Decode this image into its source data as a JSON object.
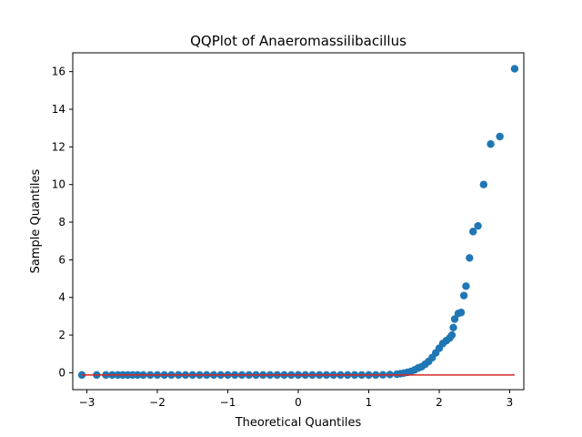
{
  "chart_data": {
    "type": "scatter",
    "title": "QQPlot of Anaeromassilibacillus",
    "xlabel": "Theoretical Quantiles",
    "ylabel": "Sample Quantiles",
    "xlim": [
      -3.2,
      3.2
    ],
    "ylim": [
      -0.9,
      17.0
    ],
    "xticks": [
      -3,
      -2,
      -1,
      0,
      1,
      2,
      3
    ],
    "xtick_labels": [
      "−3",
      "−2",
      "−1",
      "0",
      "1",
      "2",
      "3"
    ],
    "yticks": [
      0,
      2,
      4,
      6,
      8,
      10,
      12,
      14,
      16
    ],
    "ytick_labels": [
      "0",
      "2",
      "4",
      "6",
      "8",
      "10",
      "12",
      "14",
      "16"
    ],
    "grid": false,
    "marker_color": "#1f77b4",
    "line_color": "#d62728",
    "reference_line": {
      "x": [
        -3.07,
        3.07
      ],
      "y": [
        -0.12,
        -0.12
      ]
    },
    "series": [
      {
        "points": [
          [
            -3.07,
            -0.12
          ],
          [
            -2.86,
            -0.12
          ],
          [
            -2.73,
            -0.12
          ],
          [
            -2.64,
            -0.12
          ],
          [
            -2.56,
            -0.12
          ],
          [
            -2.49,
            -0.12
          ],
          [
            -2.42,
            -0.12
          ],
          [
            -2.35,
            -0.12
          ],
          [
            -2.28,
            -0.12
          ],
          [
            -2.2,
            -0.12
          ],
          [
            -2.1,
            -0.12
          ],
          [
            -2.0,
            -0.12
          ],
          [
            -1.9,
            -0.12
          ],
          [
            -1.8,
            -0.12
          ],
          [
            -1.7,
            -0.12
          ],
          [
            -1.6,
            -0.12
          ],
          [
            -1.5,
            -0.12
          ],
          [
            -1.4,
            -0.12
          ],
          [
            -1.3,
            -0.12
          ],
          [
            -1.2,
            -0.12
          ],
          [
            -1.1,
            -0.12
          ],
          [
            -1.0,
            -0.12
          ],
          [
            -0.9,
            -0.12
          ],
          [
            -0.8,
            -0.12
          ],
          [
            -0.7,
            -0.12
          ],
          [
            -0.6,
            -0.12
          ],
          [
            -0.5,
            -0.12
          ],
          [
            -0.4,
            -0.12
          ],
          [
            -0.3,
            -0.12
          ],
          [
            -0.2,
            -0.12
          ],
          [
            -0.1,
            -0.12
          ],
          [
            0.0,
            -0.12
          ],
          [
            0.1,
            -0.12
          ],
          [
            0.2,
            -0.12
          ],
          [
            0.3,
            -0.12
          ],
          [
            0.4,
            -0.12
          ],
          [
            0.5,
            -0.12
          ],
          [
            0.6,
            -0.12
          ],
          [
            0.7,
            -0.12
          ],
          [
            0.8,
            -0.12
          ],
          [
            0.9,
            -0.12
          ],
          [
            1.0,
            -0.12
          ],
          [
            1.1,
            -0.12
          ],
          [
            1.2,
            -0.11
          ],
          [
            1.3,
            -0.1
          ],
          [
            1.4,
            -0.08
          ],
          [
            1.45,
            -0.05
          ],
          [
            1.5,
            -0.02
          ],
          [
            1.55,
            0.02
          ],
          [
            1.6,
            0.07
          ],
          [
            1.65,
            0.15
          ],
          [
            1.7,
            0.25
          ],
          [
            1.75,
            0.32
          ],
          [
            1.8,
            0.45
          ],
          [
            1.85,
            0.6
          ],
          [
            1.9,
            0.8
          ],
          [
            1.95,
            1.05
          ],
          [
            2.0,
            1.3
          ],
          [
            2.05,
            1.55
          ],
          [
            2.1,
            1.7
          ],
          [
            2.15,
            1.85
          ],
          [
            2.18,
            2.0
          ],
          [
            2.2,
            2.4
          ],
          [
            2.22,
            2.85
          ],
          [
            2.27,
            3.15
          ],
          [
            2.31,
            3.2
          ],
          [
            2.35,
            4.1
          ],
          [
            2.38,
            4.6
          ],
          [
            2.43,
            6.1
          ],
          [
            2.48,
            7.5
          ],
          [
            2.55,
            7.8
          ],
          [
            2.63,
            10.0
          ],
          [
            2.73,
            12.15
          ],
          [
            2.86,
            12.55
          ],
          [
            3.07,
            16.15
          ]
        ]
      }
    ]
  }
}
